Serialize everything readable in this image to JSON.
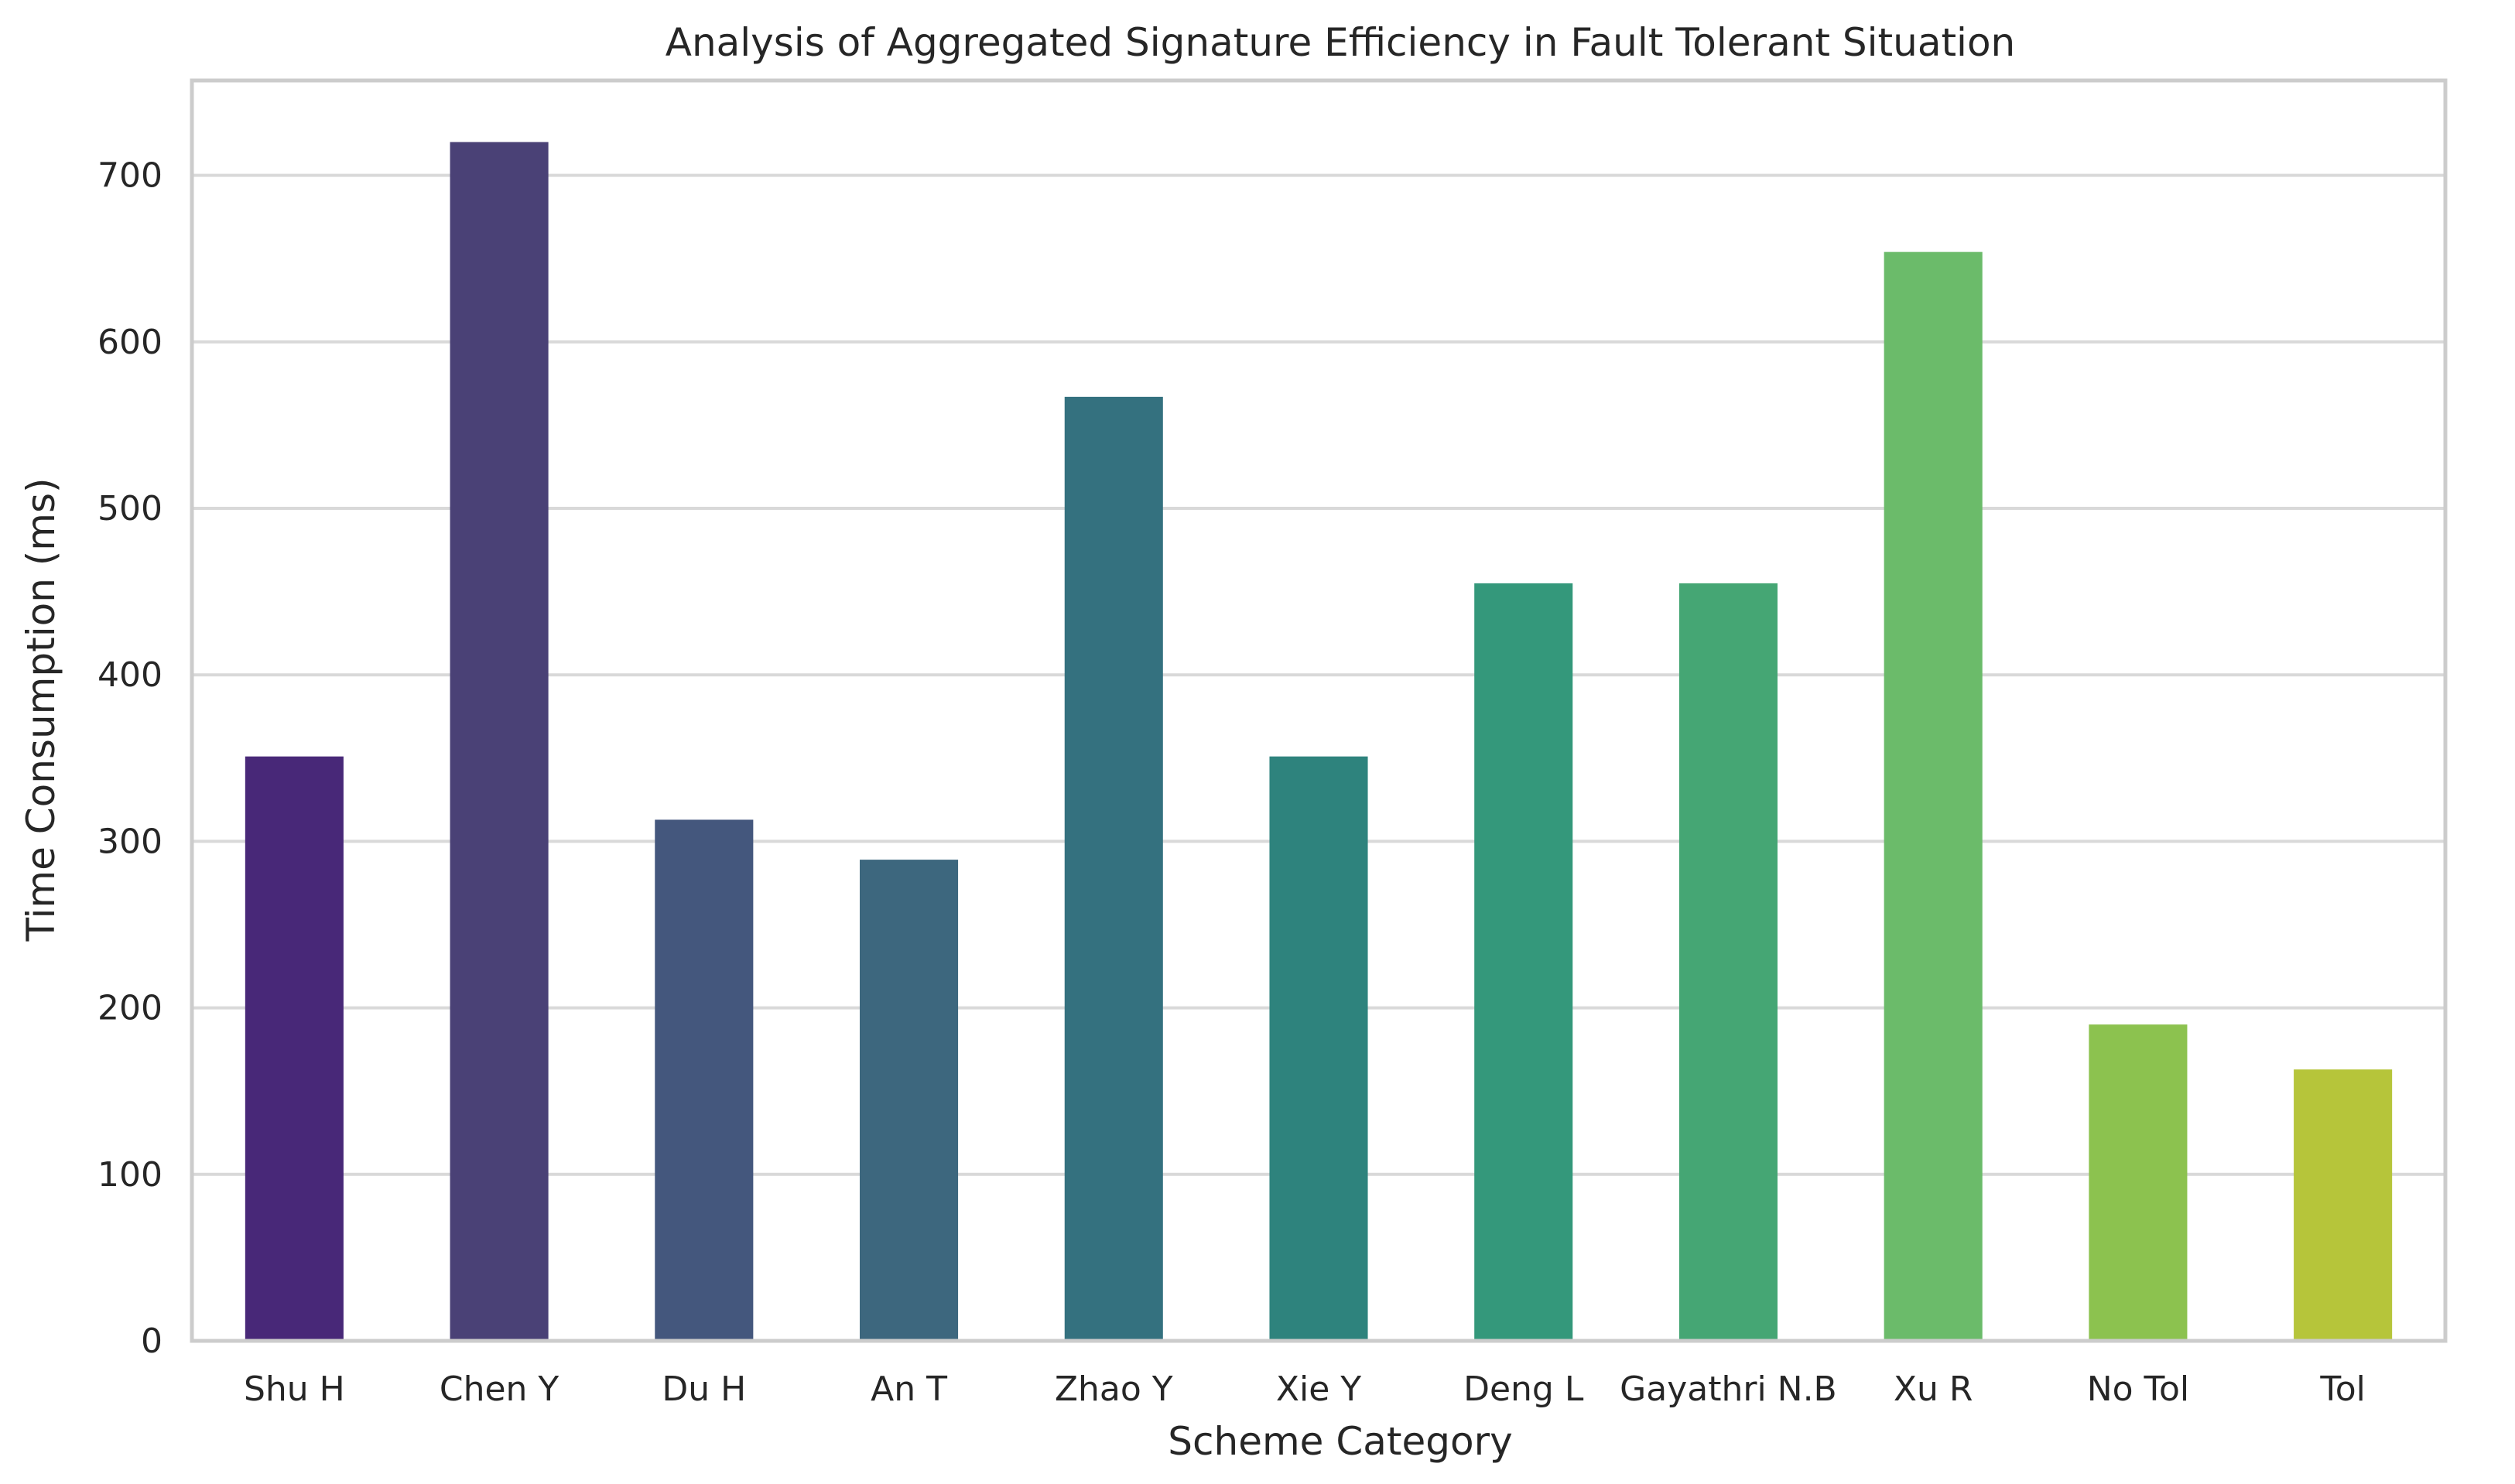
{
  "chart_data": {
    "type": "bar",
    "title": "Analysis of Aggregated Signature Efficiency in Fault Tolerant Situation",
    "xlabel": "Scheme Category",
    "ylabel": "Time Consumption (ms)",
    "categories": [
      "Shu H",
      "Chen Y",
      "Du H",
      "An T",
      "Zhao Y",
      "Xie Y",
      "Deng L",
      "Gayathri N.B",
      "Xu R",
      "No Tol",
      "Tol"
    ],
    "values": [
      351,
      720,
      313,
      289,
      567,
      351,
      455,
      455,
      654,
      190,
      163
    ],
    "colors": [
      "#482878",
      "#4a4176",
      "#44577d",
      "#3d677e",
      "#34717f",
      "#2e837d",
      "#34987b",
      "#45a674",
      "#6bbb6a",
      "#8cc24f",
      "#b6c53a"
    ],
    "ylim": [
      0,
      757
    ],
    "yticks": [
      0,
      100,
      200,
      300,
      400,
      500,
      600,
      700
    ],
    "grid": true
  }
}
